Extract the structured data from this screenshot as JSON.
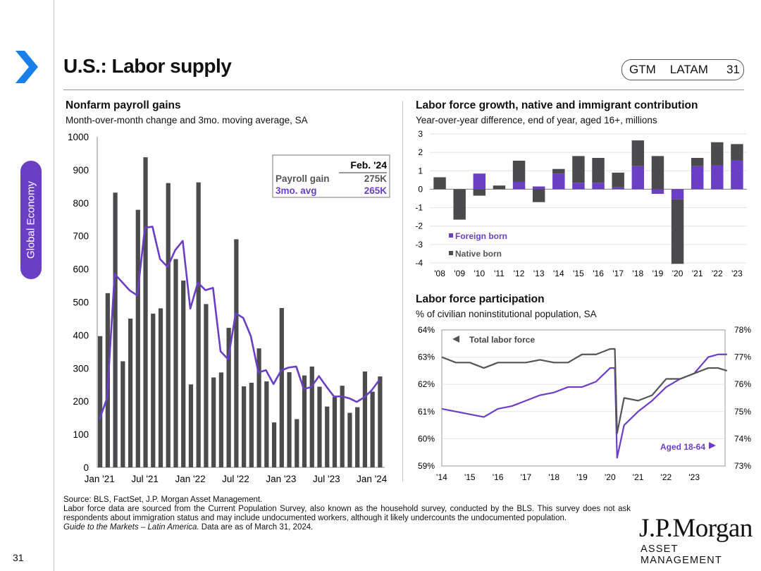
{
  "header": {
    "title": "U.S.: Labor supply",
    "badge": [
      "GTM",
      "LATAM",
      "31"
    ]
  },
  "sidebar": {
    "tab_label": "Global Economy",
    "page_number": "31"
  },
  "colors": {
    "purple": "#6a3fc6",
    "bar": "#4b4b4d",
    "line_gray": "#555555"
  },
  "charts": {
    "payroll": {
      "title": "Nonfarm payroll gains",
      "subtitle": "Month-over-month change and 3mo. moving average, SA",
      "callout": {
        "header": "Feb. '24",
        "row1_label": "Payroll gain",
        "row1_value": "275K",
        "row2_label": "3mo. avg",
        "row2_value": "265K"
      }
    },
    "laborforce": {
      "title": "Labor force growth, native and immigrant contribution",
      "subtitle": "Year-over-year difference, end of year, aged 16+, millions",
      "legend": [
        "Foreign born",
        "Native born"
      ]
    },
    "participation": {
      "title": "Labor force participation",
      "subtitle": "% of civilian noninstitutional population, SA",
      "label_total": "Total labor force",
      "label_aged": "Aged 18-64"
    }
  },
  "chart_data": [
    {
      "type": "bar",
      "title": "Nonfarm payroll gains",
      "ylim": [
        0,
        1000
      ],
      "y_ticks": [
        "0",
        "100",
        "200",
        "300",
        "400",
        "500",
        "600",
        "700",
        "800",
        "900",
        "1000"
      ],
      "x_ticks": [
        "Jan '21",
        "Jul '21",
        "Jan '22",
        "Jul '22",
        "Jan '23",
        "Jul '23",
        "Jan '24"
      ],
      "x_tick_index": [
        0,
        6,
        12,
        18,
        24,
        30,
        36
      ],
      "series": [
        {
          "name": "Payroll gain",
          "kind": "bar",
          "values": [
            397,
            527,
            831,
            321,
            450,
            779,
            938,
            465,
            481,
            860,
            630,
            565,
            251,
            862,
            494,
            272,
            287,
            422,
            690,
            245,
            256,
            360,
            260,
            136,
            482,
            288,
            146,
            278,
            305,
            244,
            184,
            213,
            247,
            165,
            182,
            290,
            229,
            275
          ]
        },
        {
          "name": "3mo. avg",
          "kind": "line",
          "values": [
            145,
            210,
            585,
            560,
            535,
            520,
            725,
            728,
            630,
            606,
            657,
            685,
            480,
            559,
            536,
            543,
            351,
            327,
            466,
            452,
            397,
            287,
            294,
            252,
            293,
            302,
            305,
            237,
            243,
            276,
            244,
            214,
            215,
            209,
            198,
            212,
            234,
            265
          ]
        }
      ]
    },
    {
      "type": "bar",
      "title": "Labor force growth, native and immigrant contribution",
      "ylim": [
        -4,
        3
      ],
      "y_ticks": [
        "3",
        "2",
        "1",
        "0",
        "-1",
        "-2",
        "-3",
        "-4"
      ],
      "categories": [
        "'08",
        "'09",
        "'10",
        "'11",
        "'12",
        "'13",
        "'14",
        "'15",
        "'16",
        "'17",
        "'18",
        "'19",
        "'20",
        "'21",
        "'22",
        "'23"
      ],
      "series": [
        {
          "name": "Foreign born",
          "values": [
            0.0,
            0.0,
            0.85,
            0.0,
            0.4,
            0.15,
            0.85,
            0.35,
            0.35,
            0.1,
            1.25,
            -0.25,
            -0.55,
            1.25,
            1.3,
            1.55
          ]
        },
        {
          "name": "Native born",
          "values": [
            0.65,
            -1.65,
            -0.35,
            0.2,
            1.15,
            -0.7,
            0.25,
            1.45,
            1.35,
            0.8,
            1.4,
            1.8,
            -3.5,
            0.45,
            1.25,
            0.9
          ]
        }
      ]
    },
    {
      "type": "line",
      "title": "Labor force participation",
      "x_ticks": [
        "'14",
        "'15",
        "'16",
        "'17",
        "'18",
        "'19",
        "'20",
        "'21",
        "'22",
        "'23"
      ],
      "left_axis": {
        "ylim": [
          59,
          64
        ],
        "ticks": [
          "64%",
          "63%",
          "62%",
          "61%",
          "60%",
          "59%"
        ]
      },
      "right_axis": {
        "ylim": [
          73,
          78
        ],
        "ticks": [
          "78%",
          "77%",
          "76%",
          "75%",
          "74%",
          "73%"
        ]
      },
      "series": [
        {
          "name": "Total labor force",
          "axis": "left",
          "points": [
            [
              2014.0,
              63.0
            ],
            [
              2014.5,
              62.8
            ],
            [
              2015.0,
              62.8
            ],
            [
              2015.5,
              62.6
            ],
            [
              2016.0,
              62.8
            ],
            [
              2016.5,
              62.8
            ],
            [
              2017.0,
              62.8
            ],
            [
              2017.5,
              62.9
            ],
            [
              2018.0,
              62.8
            ],
            [
              2018.5,
              62.8
            ],
            [
              2019.0,
              63.1
            ],
            [
              2019.5,
              63.1
            ],
            [
              2020.0,
              63.3
            ],
            [
              2020.17,
              63.3
            ],
            [
              2020.25,
              60.2
            ],
            [
              2020.5,
              61.5
            ],
            [
              2021.0,
              61.4
            ],
            [
              2021.5,
              61.6
            ],
            [
              2022.0,
              62.2
            ],
            [
              2022.5,
              62.2
            ],
            [
              2023.0,
              62.4
            ],
            [
              2023.5,
              62.6
            ],
            [
              2023.85,
              62.6
            ],
            [
              2024.17,
              62.5
            ]
          ]
        },
        {
          "name": "Aged 18-64",
          "axis": "right",
          "points": [
            [
              2014.0,
              75.1
            ],
            [
              2014.5,
              75.0
            ],
            [
              2015.0,
              74.9
            ],
            [
              2015.5,
              74.8
            ],
            [
              2016.0,
              75.1
            ],
            [
              2016.5,
              75.2
            ],
            [
              2017.0,
              75.4
            ],
            [
              2017.5,
              75.6
            ],
            [
              2018.0,
              75.7
            ],
            [
              2018.5,
              75.9
            ],
            [
              2019.0,
              75.9
            ],
            [
              2019.5,
              76.1
            ],
            [
              2020.0,
              76.6
            ],
            [
              2020.17,
              76.6
            ],
            [
              2020.25,
              73.3
            ],
            [
              2020.5,
              74.5
            ],
            [
              2021.0,
              75.0
            ],
            [
              2021.5,
              75.4
            ],
            [
              2022.0,
              75.9
            ],
            [
              2022.5,
              76.2
            ],
            [
              2023.0,
              76.4
            ],
            [
              2023.5,
              77.0
            ],
            [
              2023.85,
              77.1
            ],
            [
              2024.17,
              77.1
            ]
          ]
        }
      ]
    }
  ],
  "footer": {
    "source": "Source: BLS, FactSet, J.P. Morgan Asset Management.",
    "note": "Labor force data are sourced from the Current Population Survey, also known as the household survey, conducted by the BLS. This survey does not ask respondents about immigration status and may include undocumented workers, although it likely undercounts the undocumented population.",
    "guide_italic": "Guide to the Markets – Latin America.",
    "guide_rest": " Data are as of March 31, 2024."
  },
  "logo": {
    "line1": "J.P.Morgan",
    "line2": "ASSET MANAGEMENT"
  }
}
